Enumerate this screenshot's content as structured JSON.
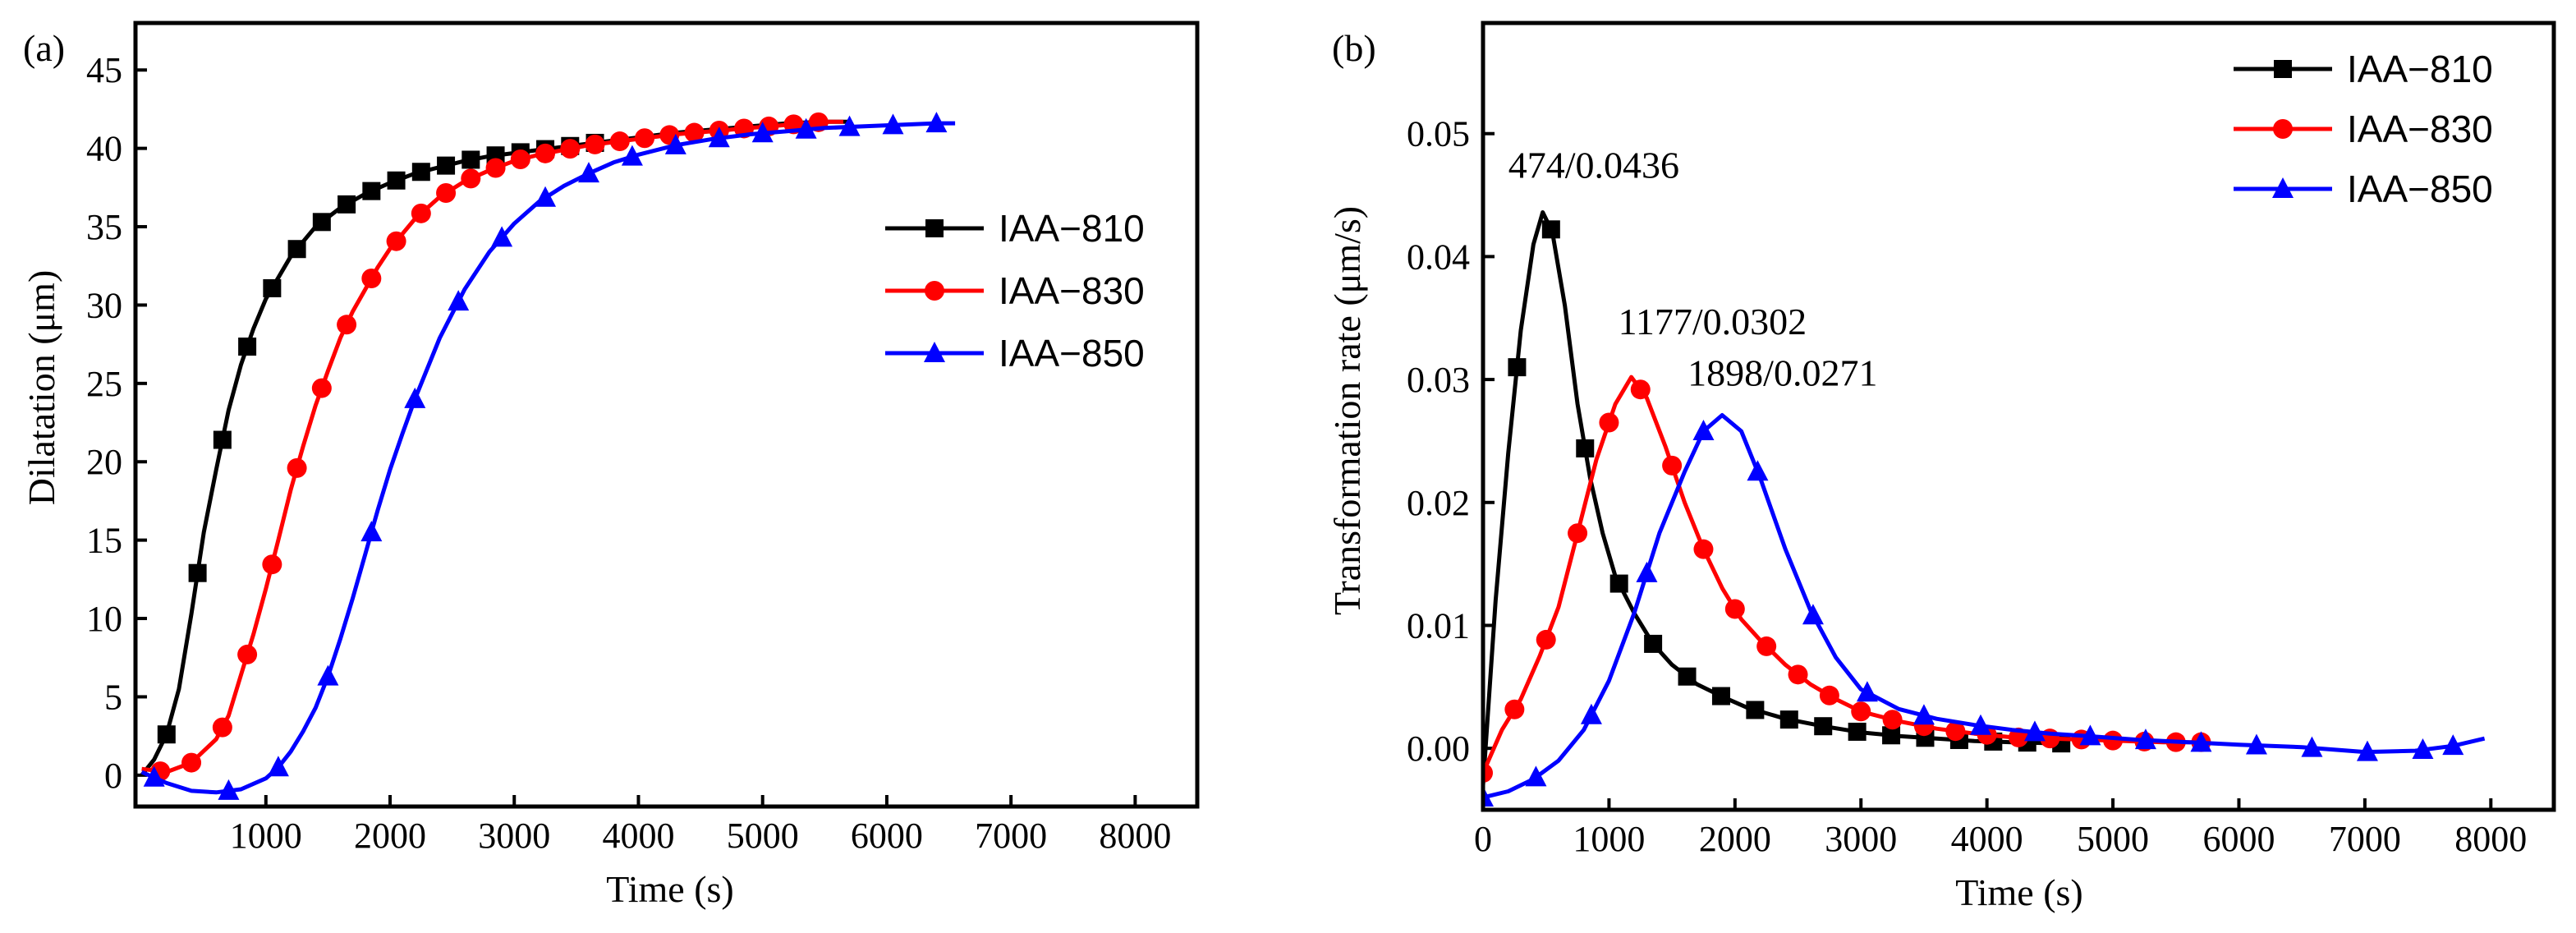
{
  "chart_data": [
    {
      "type": "line",
      "panel_label": "(a)",
      "title": "",
      "xlabel": "Time (s)",
      "ylabel": "Dilatation (μm)",
      "xlim": [
        -50,
        8500
      ],
      "ylim": [
        -2,
        48
      ],
      "xticks": [
        1000,
        2000,
        3000,
        4000,
        5000,
        6000,
        7000,
        8000
      ],
      "yticks": [
        0,
        5,
        10,
        15,
        20,
        25,
        30,
        35,
        40,
        45
      ],
      "legend_position": "center-right",
      "series": [
        {
          "name": "IAA−810",
          "color": "#000000",
          "marker": "square",
          "x": [
            0,
            100,
            200,
            300,
            400,
            500,
            600,
            700,
            800,
            900,
            1000,
            1200,
            1400,
            1600,
            1800,
            2000,
            2200,
            2400,
            2600,
            2800,
            3000,
            3200,
            3400,
            3600,
            3800,
            4000,
            4300,
            4600,
            4900,
            5200,
            5500,
            5700
          ],
          "y": [
            0,
            1.0,
            2.6,
            5.5,
            10.3,
            15.5,
            19.5,
            23.3,
            26.2,
            28.5,
            30.4,
            33.1,
            35.0,
            36.2,
            37.1,
            37.8,
            38.4,
            38.8,
            39.2,
            39.5,
            39.7,
            39.9,
            40.1,
            40.3,
            40.5,
            40.7,
            41.0,
            41.2,
            41.4,
            41.6,
            41.7,
            41.7
          ],
          "marker_x": [
            200,
            450,
            650,
            850,
            1050,
            1250,
            1450,
            1650,
            1850,
            2050,
            2250,
            2450,
            2650,
            2850,
            3050,
            3250,
            3450,
            3650
          ]
        },
        {
          "name": "IAA−830",
          "color": "#ff0000",
          "marker": "circle",
          "x": [
            0,
            200,
            400,
            600,
            700,
            800,
            900,
            1000,
            1100,
            1200,
            1300,
            1400,
            1500,
            1600,
            1700,
            1800,
            1900,
            2000,
            2200,
            2400,
            2600,
            2800,
            3000,
            3200,
            3400,
            3600,
            3800,
            4000,
            4300,
            4600,
            4900,
            5200,
            5500,
            5650
          ],
          "y": [
            0.4,
            0.2,
            0.8,
            2.3,
            3.8,
            6.4,
            9.0,
            11.9,
            15.0,
            18.2,
            21.0,
            23.6,
            25.8,
            27.9,
            29.6,
            31.0,
            32.4,
            33.6,
            35.5,
            36.9,
            37.9,
            38.6,
            39.2,
            39.6,
            39.9,
            40.2,
            40.4,
            40.6,
            40.9,
            41.1,
            41.3,
            41.5,
            41.7,
            41.7
          ],
          "marker_x": [
            150,
            400,
            650,
            850,
            1050,
            1250,
            1450,
            1650,
            1850,
            2050,
            2250,
            2450,
            2650,
            2850,
            3050,
            3250,
            3450,
            3650,
            3850,
            4050,
            4250,
            4450,
            4650,
            4850,
            5050,
            5250,
            5450
          ]
        },
        {
          "name": "IAA−850",
          "color": "#0000ff",
          "marker": "triangle",
          "x": [
            0,
            200,
            400,
            600,
            800,
            1000,
            1100,
            1200,
            1300,
            1400,
            1500,
            1600,
            1700,
            1800,
            1900,
            2000,
            2100,
            2200,
            2400,
            2600,
            2800,
            3000,
            3200,
            3400,
            3600,
            3800,
            4000,
            4300,
            4600,
            4900,
            5200,
            5500,
            5800,
            6100,
            6400,
            6550
          ],
          "y": [
            0.2,
            -0.5,
            -1.0,
            -1.1,
            -0.9,
            -0.2,
            0.5,
            1.5,
            2.8,
            4.3,
            6.3,
            8.7,
            11.3,
            14.1,
            16.9,
            19.5,
            21.8,
            24.0,
            27.9,
            31.0,
            33.4,
            35.2,
            36.6,
            37.6,
            38.4,
            39.1,
            39.6,
            40.2,
            40.6,
            40.9,
            41.1,
            41.3,
            41.4,
            41.5,
            41.6,
            41.6
          ],
          "marker_x": [
            100,
            700,
            1100,
            1500,
            1850,
            2200,
            2550,
            2900,
            3250,
            3600,
            3950,
            4300,
            4650,
            5000,
            5350,
            5700,
            6050,
            6400
          ]
        }
      ]
    },
    {
      "type": "line",
      "panel_label": "(b)",
      "title": "",
      "xlabel": "Time (s)",
      "ylabel": "Transformation rate (μm/s)",
      "xlim": [
        0,
        8500
      ],
      "ylim": [
        -0.005,
        0.059
      ],
      "xticks": [
        0,
        1000,
        2000,
        3000,
        4000,
        5000,
        6000,
        7000,
        8000
      ],
      "yticks": [
        0.0,
        0.01,
        0.02,
        0.03,
        0.04,
        0.05
      ],
      "ytick_labels": [
        "0.00",
        "0.01",
        "0.02",
        "0.03",
        "0.04",
        "0.05"
      ],
      "legend_position": "top-right",
      "annotations": [
        {
          "text": "474/0.0436",
          "x": 474,
          "y": 0.0436
        },
        {
          "text": "1177/0.0302",
          "x": 1177,
          "y": 0.0302
        },
        {
          "text": "1898/0.0271",
          "x": 1898,
          "y": 0.0271
        }
      ],
      "series": [
        {
          "name": "IAA−810",
          "color": "#000000",
          "marker": "square",
          "x": [
            0,
            100,
            200,
            300,
            400,
            474,
            550,
            650,
            750,
            850,
            950,
            1050,
            1200,
            1350,
            1500,
            1700,
            1900,
            2100,
            2400,
            2700,
            3000,
            3300,
            3600,
            3900,
            4200,
            4600
          ],
          "y": [
            -0.003,
            0.012,
            0.024,
            0.034,
            0.041,
            0.0436,
            0.042,
            0.036,
            0.028,
            0.022,
            0.0175,
            0.014,
            0.011,
            0.0085,
            0.0068,
            0.0052,
            0.0042,
            0.0033,
            0.0024,
            0.0018,
            0.0013,
            0.001,
            0.0008,
            0.0006,
            0.0005,
            0.0004
          ],
          "marker_x": [
            270,
            540,
            810,
            1080,
            1350,
            1620,
            1890,
            2160,
            2430,
            2700,
            2970,
            3240,
            3510,
            3780,
            4050,
            4320,
            4590
          ]
        },
        {
          "name": "IAA−830",
          "color": "#ff0000",
          "marker": "circle",
          "x": [
            0,
            150,
            300,
            450,
            600,
            750,
            900,
            1050,
            1177,
            1300,
            1450,
            1600,
            1750,
            1900,
            2050,
            2200,
            2400,
            2600,
            2800,
            3000,
            3300,
            3600,
            3900,
            4200,
            4500,
            4800,
            5100,
            5400,
            5700
          ],
          "y": [
            -0.002,
            0.0015,
            0.004,
            0.0075,
            0.0115,
            0.0175,
            0.0235,
            0.028,
            0.0302,
            0.0285,
            0.0245,
            0.02,
            0.0162,
            0.013,
            0.0105,
            0.0088,
            0.0068,
            0.0052,
            0.004,
            0.003,
            0.0022,
            0.0016,
            0.0012,
            0.0009,
            0.0008,
            0.0007,
            0.0006,
            0.0005,
            0.0005
          ],
          "marker_x": [
            0,
            250,
            500,
            750,
            1000,
            1250,
            1500,
            1750,
            2000,
            2250,
            2500,
            2750,
            3000,
            3250,
            3500,
            3750,
            4000,
            4250,
            4500,
            4750,
            5000,
            5250,
            5500,
            5700
          ]
        },
        {
          "name": "IAA−850",
          "color": "#0000ff",
          "marker": "triangle",
          "x": [
            0,
            200,
            400,
            600,
            800,
            1000,
            1200,
            1400,
            1600,
            1750,
            1898,
            2050,
            2200,
            2400,
            2600,
            2800,
            3000,
            3300,
            3600,
            3900,
            4200,
            4500,
            4800,
            5200,
            5600,
            6000,
            6500,
            7000,
            7400,
            7700,
            7950
          ],
          "y": [
            -0.004,
            -0.0035,
            -0.0025,
            -0.001,
            0.0015,
            0.0055,
            0.011,
            0.0175,
            0.0225,
            0.0258,
            0.0271,
            0.0258,
            0.022,
            0.0162,
            0.0112,
            0.0074,
            0.0048,
            0.0032,
            0.0024,
            0.0019,
            0.0015,
            0.0012,
            0.001,
            0.0007,
            0.0005,
            0.0003,
            0.0001,
            -0.0003,
            -0.0002,
            0.0002,
            0.0008
          ],
          "marker_x": [
            0,
            420,
            860,
            1300,
            1750,
            2180,
            2620,
            3050,
            3500,
            3950,
            4380,
            4820,
            5260,
            5700,
            6140,
            6580,
            7020,
            7460,
            7700
          ]
        }
      ]
    }
  ]
}
